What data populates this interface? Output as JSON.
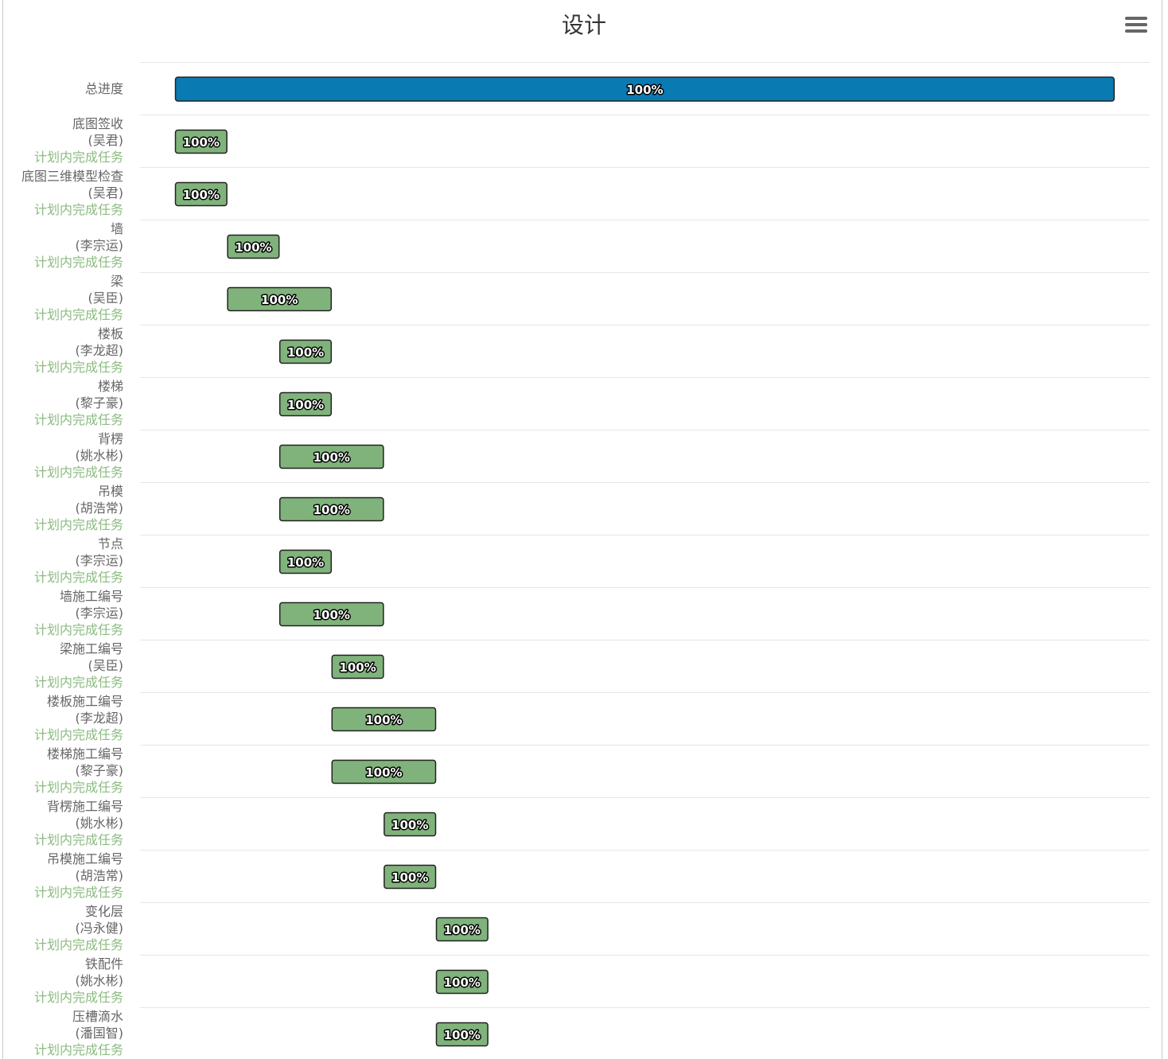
{
  "title": "设计",
  "menu_icon": "hamburger-menu-icon",
  "colors": {
    "total_bar": "#0a7ab3",
    "task_bar": "#80b37b",
    "status_text": "#8bbb80",
    "label_text": "#666666",
    "grid": "#e6e6e6"
  },
  "chart_data": {
    "type": "gantt",
    "title": "设计",
    "time_unit": "step",
    "summary": {
      "name": "总进度",
      "start": 0,
      "end": 18,
      "progress_label": "100%"
    },
    "tasks": [
      {
        "name": "底图签收",
        "owner": "(吴君)",
        "status": "计划内完成任务",
        "start": 0,
        "end": 1,
        "progress_label": "100%"
      },
      {
        "name": "底图三维模型检查",
        "owner": "(吴君)",
        "status": "计划内完成任务",
        "start": 0,
        "end": 1,
        "progress_label": "100%"
      },
      {
        "name": "墙",
        "owner": "(李宗运)",
        "status": "计划内完成任务",
        "start": 1,
        "end": 2,
        "progress_label": "100%"
      },
      {
        "name": "梁",
        "owner": "(吴臣)",
        "status": "计划内完成任务",
        "start": 1,
        "end": 3,
        "progress_label": "100%"
      },
      {
        "name": "楼板",
        "owner": "(李龙超)",
        "status": "计划内完成任务",
        "start": 2,
        "end": 3,
        "progress_label": "100%"
      },
      {
        "name": "楼梯",
        "owner": "(黎子豪)",
        "status": "计划内完成任务",
        "start": 2,
        "end": 3,
        "progress_label": "100%"
      },
      {
        "name": "背楞",
        "owner": "(姚水彬)",
        "status": "计划内完成任务",
        "start": 2,
        "end": 4,
        "progress_label": "100%"
      },
      {
        "name": "吊模",
        "owner": "(胡浩常)",
        "status": "计划内完成任务",
        "start": 2,
        "end": 4,
        "progress_label": "100%"
      },
      {
        "name": "节点",
        "owner": "(李宗运)",
        "status": "计划内完成任务",
        "start": 2,
        "end": 3,
        "progress_label": "100%"
      },
      {
        "name": "墙施工编号",
        "owner": "(李宗运)",
        "status": "计划内完成任务",
        "start": 2,
        "end": 4,
        "progress_label": "100%"
      },
      {
        "name": "梁施工编号",
        "owner": "(吴臣)",
        "status": "计划内完成任务",
        "start": 3,
        "end": 4,
        "progress_label": "100%"
      },
      {
        "name": "楼板施工编号",
        "owner": "(李龙超)",
        "status": "计划内完成任务",
        "start": 3,
        "end": 5,
        "progress_label": "100%"
      },
      {
        "name": "楼梯施工编号",
        "owner": "(黎子豪)",
        "status": "计划内完成任务",
        "start": 3,
        "end": 5,
        "progress_label": "100%"
      },
      {
        "name": "背楞施工编号",
        "owner": "(姚水彬)",
        "status": "计划内完成任务",
        "start": 4,
        "end": 5,
        "progress_label": "100%"
      },
      {
        "name": "吊模施工编号",
        "owner": "(胡浩常)",
        "status": "计划内完成任务",
        "start": 4,
        "end": 5,
        "progress_label": "100%"
      },
      {
        "name": "变化层",
        "owner": "(冯永健)",
        "status": "计划内完成任务",
        "start": 5,
        "end": 6,
        "progress_label": "100%"
      },
      {
        "name": "铁配件",
        "owner": "(姚水彬)",
        "status": "计划内完成任务",
        "start": 5,
        "end": 6,
        "progress_label": "100%"
      },
      {
        "name": "压槽滴水",
        "owner": "(潘国智)",
        "status": "计划内完成任务",
        "start": 5,
        "end": 6,
        "progress_label": "100%"
      }
    ]
  }
}
